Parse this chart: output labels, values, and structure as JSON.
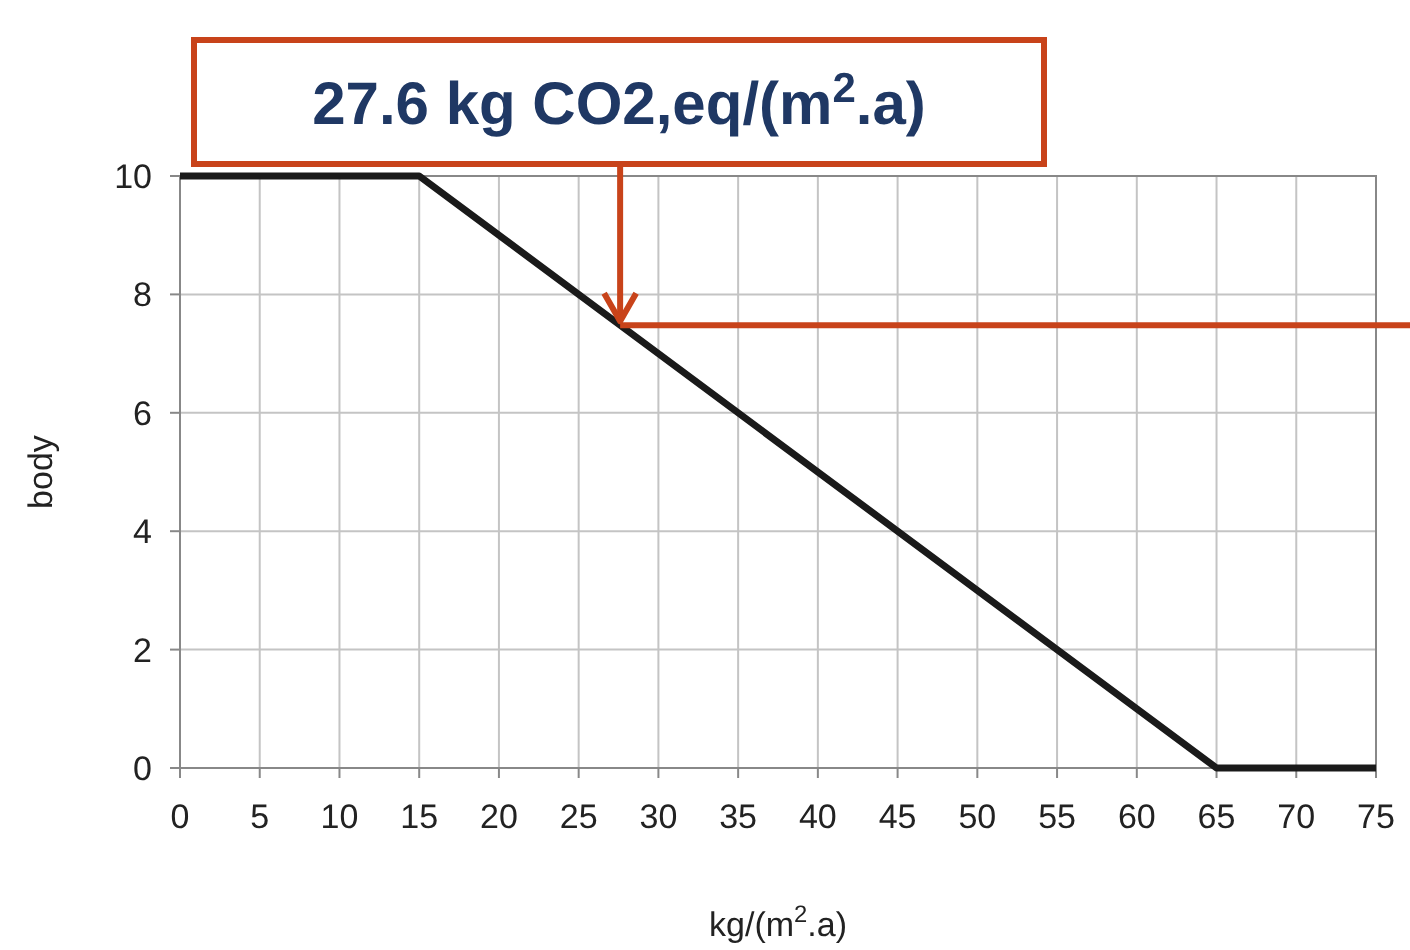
{
  "chart_data": {
    "type": "line",
    "xlabel": "kg/(m$^{2}$.a)",
    "ylabel": "body",
    "x": [
      0,
      15,
      65,
      75
    ],
    "series": [
      {
        "color": "#1a1a1a",
        "values": [
          10,
          10,
          0,
          0
        ]
      }
    ],
    "xlim": [
      0,
      75
    ],
    "xticks": [
      0,
      5,
      10,
      15,
      20,
      25,
      30,
      35,
      40,
      45,
      50,
      55,
      60,
      65,
      70,
      75
    ],
    "ylim": [
      0,
      10
    ],
    "yticks": [
      0,
      2,
      4,
      6,
      8,
      10
    ],
    "grid": true,
    "marker": "none",
    "line_style": "solid",
    "ref_lines": [
      {
        "axis": "y",
        "value": 7.48,
        "color": "#c8431a"
      }
    ],
    "annotations": [
      {
        "text": "27.6 kg CO2,eq/(m$^{2}$.a)",
        "x": 27.6,
        "y": 7.48
      }
    ]
  }
}
